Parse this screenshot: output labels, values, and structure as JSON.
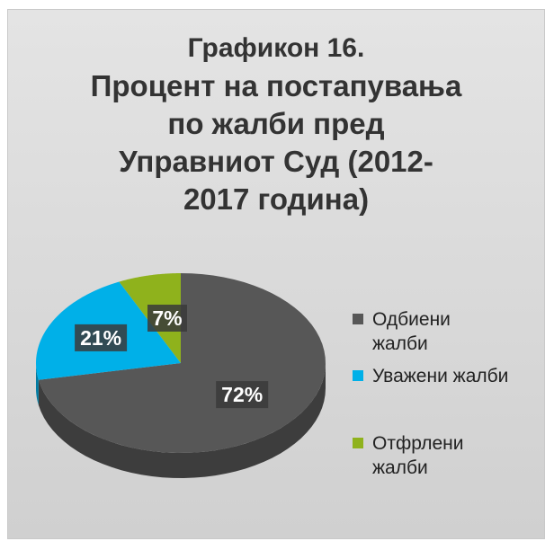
{
  "chart_data": {
    "type": "pie",
    "title_lines": [
      "Графикон 16.",
      "Процент на постапувања",
      "по жалби пред",
      "Управниот Суд (2012-",
      "2017 година)"
    ],
    "categories": [
      "Одбиени жалби",
      "Уважени жалби",
      "Отфрлени жалби"
    ],
    "values": [
      72,
      21,
      7
    ],
    "labels": [
      "72%",
      "21%",
      "7%"
    ],
    "colors": [
      "#575757",
      "#00b0e8",
      "#8fb21c"
    ],
    "legend_position": "right"
  }
}
